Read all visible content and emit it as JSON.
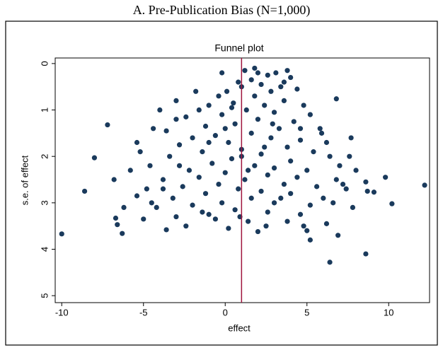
{
  "chart_data": {
    "type": "scatter",
    "caption": "A. Pre-Publication Bias (N=1,000)",
    "title": "Funnel plot",
    "xlabel": "effect",
    "ylabel": "s.e. of effect",
    "color": "#1a3a5c",
    "reference_line": {
      "x": 1,
      "color": "#a0153e"
    },
    "xlim": [
      -10.4,
      12.5
    ],
    "ylim": [
      -0.12,
      5.15
    ],
    "y_inverted": true,
    "xticks": [
      -10,
      -5,
      0,
      5,
      10
    ],
    "yticks": [
      0,
      1,
      2,
      3,
      4,
      5
    ],
    "x": [
      1.2,
      2.0,
      2.6,
      3.1,
      3.8,
      4.0,
      1.6,
      0.8,
      2.2,
      3.4,
      1.0,
      0.1,
      2.8,
      4.4,
      -0.4,
      1.8,
      3.6,
      0.5,
      -1.0,
      2.4,
      4.8,
      -1.6,
      1.3,
      3.0,
      -0.2,
      5.2,
      -2.4,
      2.0,
      -3.0,
      4.2,
      0.6,
      -1.2,
      3.3,
      5.8,
      -3.6,
      1.6,
      -0.6,
      2.8,
      -2.0,
      4.6,
      -4.4,
      0.2,
      6.2,
      -2.8,
      3.8,
      1.0,
      -1.4,
      5.4,
      -5.2,
      2.2,
      -3.4,
      0.4,
      4.0,
      -0.8,
      6.4,
      -4.6,
      1.8,
      3.0,
      -2.2,
      5.0,
      -5.8,
      0.0,
      2.6,
      -1.6,
      4.4,
      -3.8,
      6.8,
      1.2,
      -6.8,
      -0.4,
      3.6,
      -2.6,
      5.6,
      -4.8,
      0.8,
      2.2,
      7.4,
      -1.2,
      4.0,
      -5.4,
      -3.2,
      6.0,
      1.6,
      -0.2,
      3.0,
      -2.0,
      5.2,
      -4.2,
      -6.2,
      7.8,
      0.6,
      2.6,
      -1.0,
      4.6,
      -3.0,
      -5.0,
      1.4,
      3.8,
      -2.4,
      6.2,
      0.2,
      -3.6,
      2.0,
      5.0,
      -1.4,
      8.0,
      7.0,
      -7.2,
      -8.0,
      -8.6,
      -10.0,
      12.2,
      10.2,
      9.1,
      8.7,
      8.6,
      6.4,
      6.9,
      5.2,
      7.7,
      6.8,
      -6.7,
      -6.3,
      -6.6,
      8.6,
      9.8,
      7.6,
      -5.4,
      -4.0,
      -3.0,
      -0.2,
      1.8,
      3.6,
      4.6,
      5.9,
      -1.8,
      0.0,
      2.4,
      -3.8,
      3.4,
      -0.6,
      1.0,
      1.4,
      2.9,
      0.4,
      -1.0,
      6.6,
      7.2,
      -2.8,
      4.8,
      -4.5,
      2.5,
      0.9
    ],
    "values": [
      0.15,
      0.2,
      0.25,
      0.2,
      0.15,
      0.3,
      0.35,
      0.4,
      0.45,
      0.5,
      0.5,
      0.6,
      0.6,
      0.55,
      0.7,
      0.7,
      0.8,
      0.85,
      0.9,
      0.9,
      0.9,
      1.0,
      1.0,
      1.05,
      1.1,
      1.1,
      1.15,
      1.2,
      1.2,
      1.25,
      1.3,
      1.35,
      1.4,
      1.4,
      1.45,
      1.5,
      1.55,
      1.6,
      1.6,
      1.65,
      1.4,
      1.7,
      1.7,
      1.75,
      1.8,
      1.85,
      1.9,
      1.9,
      1.9,
      1.95,
      2.0,
      2.05,
      2.1,
      2.15,
      2.0,
      2.2,
      2.2,
      2.25,
      2.3,
      2.3,
      2.3,
      2.35,
      2.4,
      2.45,
      2.45,
      2.5,
      2.5,
      2.5,
      2.5,
      2.6,
      2.6,
      2.65,
      2.65,
      2.7,
      2.7,
      2.75,
      2.7,
      2.8,
      2.8,
      2.85,
      2.9,
      2.9,
      2.9,
      3.0,
      3.0,
      3.05,
      3.05,
      3.1,
      3.1,
      3.1,
      3.15,
      3.2,
      3.25,
      3.25,
      3.3,
      3.35,
      3.4,
      3.4,
      3.5,
      3.45,
      3.55,
      3.58,
      3.62,
      3.6,
      3.2,
      2.3,
      2.2,
      1.32,
      2.03,
      2.75,
      3.67,
      2.62,
      3.02,
      2.77,
      2.75,
      4.1,
      4.28,
      3.7,
      3.8,
      1.6,
      0.76,
      3.33,
      3.66,
      3.47,
      2.55,
      2.45,
      2.0,
      1.7,
      1.0,
      0.8,
      0.2,
      0.1,
      0.4,
      1.4,
      1.5,
      0.6,
      1.4,
      1.8,
      2.7,
      2.9,
      3.35,
      2.0,
      2.3,
      1.3,
      0.95,
      1.7,
      3.0,
      2.6,
      2.2,
      3.5,
      3.0,
      3.5,
      3.3
    ]
  }
}
